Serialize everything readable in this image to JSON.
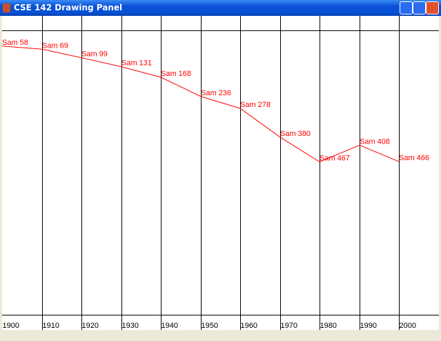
{
  "window": {
    "title": "CSE 142 Drawing Panel"
  },
  "chart_data": {
    "type": "line",
    "categories": [
      "1900",
      "1910",
      "1920",
      "1930",
      "1940",
      "1950",
      "1960",
      "1970",
      "1980",
      "1990",
      "2000"
    ],
    "series": [
      {
        "name": "Sam",
        "color": "#ff0000",
        "values": [
          58,
          69,
          99,
          131,
          168,
          236,
          278,
          380,
          467,
          408,
          466
        ],
        "value_labels": [
          "Sam 58",
          "Sam 69",
          "Sam 99",
          "Sam 131",
          "Sam 168",
          "Sam 236",
          "Sam 278",
          "Sam 380",
          "Sam 467",
          "Sam 408",
          "Sam 466"
        ]
      }
    ],
    "ylim": [
      0,
      1000
    ]
  }
}
